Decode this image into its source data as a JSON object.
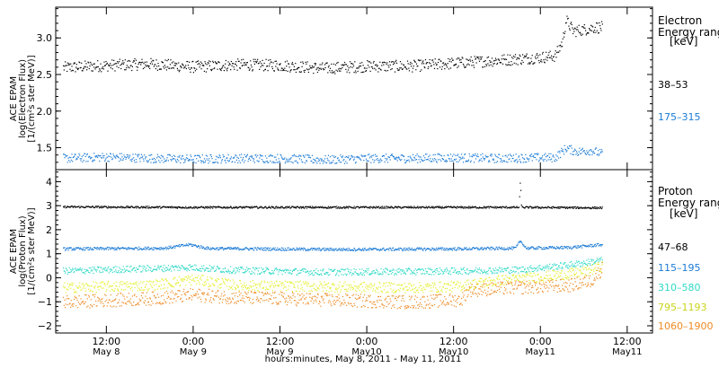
{
  "chart_data": {
    "type": "scatter",
    "xlabel": "hours:minutes, May  8, 2011 - May 11, 2011",
    "x_ticks": [
      {
        "x": "2011-05-08T12:00",
        "time": "12:00",
        "date": "May 8"
      },
      {
        "x": "2011-05-09T00:00",
        "time": "0:00",
        "date": "May 9"
      },
      {
        "x": "2011-05-09T12:00",
        "time": "12:00",
        "date": "May 9"
      },
      {
        "x": "2011-05-10T00:00",
        "time": "0:00",
        "date": "May10"
      },
      {
        "x": "2011-05-10T12:00",
        "time": "12:00",
        "date": "May10"
      },
      {
        "x": "2011-05-11T00:00",
        "time": "0:00",
        "date": "May11"
      },
      {
        "x": "2011-05-11T12:00",
        "time": "12:00",
        "date": "May11"
      }
    ],
    "xlim": [
      "2011-05-08T05:00",
      "2011-05-11T15:30"
    ],
    "panels": [
      {
        "ylabel_lines": [
          "ACE EPAM",
          "log(Electron Flux)",
          "[1/(cm²s ster MeV)]"
        ],
        "ylim": [
          1.2,
          3.42
        ],
        "yticks": [
          1.5,
          2.0,
          2.5,
          3.0
        ],
        "ytick_labels": [
          "1.5",
          "2.0",
          "2.5",
          "3.0"
        ],
        "legend_title": [
          "Electron",
          "Energy ranges"
        ],
        "legend_unit": "[keV]",
        "series": [
          {
            "name": "38–53",
            "color": "#000000",
            "points": [
              [
                "2011-05-08T06:00",
                2.6
              ],
              [
                "2011-05-08T12:00",
                2.63
              ],
              [
                "2011-05-08T18:00",
                2.65
              ],
              [
                "2011-05-09T00:00",
                2.61
              ],
              [
                "2011-05-09T06:00",
                2.64
              ],
              [
                "2011-05-09T12:00",
                2.63
              ],
              [
                "2011-05-09T18:00",
                2.59
              ],
              [
                "2011-05-10T00:00",
                2.62
              ],
              [
                "2011-05-10T06:00",
                2.62
              ],
              [
                "2011-05-10T12:00",
                2.66
              ],
              [
                "2011-05-10T18:00",
                2.7
              ],
              [
                "2011-05-11T00:00",
                2.74
              ],
              [
                "2011-05-11T02:00",
                2.76
              ],
              [
                "2011-05-11T03:00",
                2.95
              ],
              [
                "2011-05-11T03:30",
                3.25
              ],
              [
                "2011-05-11T04:30",
                3.1
              ],
              [
                "2011-05-11T06:00",
                3.12
              ],
              [
                "2011-05-11T07:30",
                3.15
              ],
              [
                "2011-05-11T08:30",
                3.15
              ]
            ],
            "spread": 0.08
          },
          {
            "name": "175–315",
            "color": "#1b7bd6",
            "points": [
              [
                "2011-05-08T06:00",
                1.36
              ],
              [
                "2011-05-08T12:00",
                1.38
              ],
              [
                "2011-05-08T18:00",
                1.36
              ],
              [
                "2011-05-09T00:00",
                1.35
              ],
              [
                "2011-05-09T06:00",
                1.36
              ],
              [
                "2011-05-09T12:00",
                1.36
              ],
              [
                "2011-05-09T18:00",
                1.34
              ],
              [
                "2011-05-10T00:00",
                1.36
              ],
              [
                "2011-05-10T06:00",
                1.36
              ],
              [
                "2011-05-10T12:00",
                1.37
              ],
              [
                "2011-05-10T18:00",
                1.36
              ],
              [
                "2011-05-11T00:00",
                1.37
              ],
              [
                "2011-05-11T02:00",
                1.37
              ],
              [
                "2011-05-11T03:30",
                1.5
              ],
              [
                "2011-05-11T05:00",
                1.45
              ],
              [
                "2011-05-11T07:00",
                1.47
              ],
              [
                "2011-05-11T08:30",
                1.42
              ]
            ],
            "spread": 0.06
          }
        ]
      },
      {
        "ylabel_lines": [
          "ACE EPAM",
          "log(Proton Flux)",
          "[1/(cm²s ster MeV)]"
        ],
        "ylim": [
          -2.3,
          4.5
        ],
        "yticks": [
          -2,
          -1,
          0,
          1,
          2,
          3,
          4
        ],
        "ytick_labels": [
          "−2",
          "−1",
          "0",
          "1",
          "2",
          "3",
          "4"
        ],
        "legend_title": [
          "Proton",
          "Energy ranges"
        ],
        "legend_unit": "[keV]",
        "series": [
          {
            "name": "47–68",
            "color": "#000000",
            "points": [
              [
                "2011-05-08T06:00",
                2.97
              ],
              [
                "2011-05-09T00:00",
                2.95
              ],
              [
                "2011-05-10T00:00",
                2.95
              ],
              [
                "2011-05-10T18:00",
                2.95
              ],
              [
                "2011-05-10T21:00",
                2.95
              ],
              [
                "2011-05-10T21:10",
                4.05
              ],
              [
                "2011-05-10T21:20",
                2.95
              ],
              [
                "2011-05-11T08:30",
                2.93
              ]
            ],
            "spread": 0.04
          },
          {
            "name": "115–195",
            "color": "#1b7bd6",
            "points": [
              [
                "2011-05-08T06:00",
                1.22
              ],
              [
                "2011-05-08T20:00",
                1.25
              ],
              [
                "2011-05-08T23:30",
                1.4
              ],
              [
                "2011-05-09T02:00",
                1.24
              ],
              [
                "2011-05-09T18:00",
                1.2
              ],
              [
                "2011-05-10T00:00",
                1.2
              ],
              [
                "2011-05-10T12:00",
                1.22
              ],
              [
                "2011-05-10T20:30",
                1.25
              ],
              [
                "2011-05-10T21:10",
                1.55
              ],
              [
                "2011-05-10T22:00",
                1.25
              ],
              [
                "2011-05-11T04:00",
                1.28
              ],
              [
                "2011-05-11T08:30",
                1.4
              ]
            ],
            "spread": 0.06
          },
          {
            "name": "310–580",
            "color": "#2fd9c6",
            "points": [
              [
                "2011-05-08T06:00",
                0.3
              ],
              [
                "2011-05-08T12:00",
                0.35
              ],
              [
                "2011-05-08T23:30",
                0.45
              ],
              [
                "2011-05-09T06:00",
                0.33
              ],
              [
                "2011-05-09T18:00",
                0.25
              ],
              [
                "2011-05-10T06:00",
                0.28
              ],
              [
                "2011-05-10T12:00",
                0.3
              ],
              [
                "2011-05-10T21:00",
                0.35
              ],
              [
                "2011-05-11T04:00",
                0.55
              ],
              [
                "2011-05-11T08:30",
                0.75
              ]
            ],
            "spread": 0.14
          },
          {
            "name": "795–1193",
            "color": "#e3ef2a",
            "points": [
              [
                "2011-05-08T06:00",
                -0.4
              ],
              [
                "2011-05-08T18:00",
                -0.3
              ],
              [
                "2011-05-09T00:00",
                -0.05
              ],
              [
                "2011-05-09T06:00",
                -0.3
              ],
              [
                "2011-05-09T18:00",
                -0.35
              ],
              [
                "2011-05-10T06:00",
                -0.4
              ],
              [
                "2011-05-10T12:00",
                -0.35
              ],
              [
                "2011-05-10T18:00",
                -0.1
              ],
              [
                "2011-05-11T00:00",
                0.05
              ],
              [
                "2011-05-11T06:00",
                0.25
              ],
              [
                "2011-05-11T08:30",
                0.5
              ]
            ],
            "spread": 0.22
          },
          {
            "name": "1060–1900",
            "color": "#ee8a22",
            "points": [
              [
                "2011-05-08T06:00",
                -1.0
              ],
              [
                "2011-05-08T18:00",
                -0.85
              ],
              [
                "2011-05-09T00:00",
                -0.7
              ],
              [
                "2011-05-09T06:00",
                -0.8
              ],
              [
                "2011-05-09T18:00",
                -0.9
              ],
              [
                "2011-05-10T06:00",
                -1.0
              ],
              [
                "2011-05-10T13:00",
                -0.9
              ],
              [
                "2011-05-10T14:00",
                -0.5
              ],
              [
                "2011-05-10T20:00",
                -0.4
              ],
              [
                "2011-05-11T04:00",
                -0.3
              ],
              [
                "2011-05-11T07:00",
                -0.1
              ],
              [
                "2011-05-11T08:30",
                0.4
              ]
            ],
            "spread": 0.28
          }
        ]
      }
    ]
  }
}
